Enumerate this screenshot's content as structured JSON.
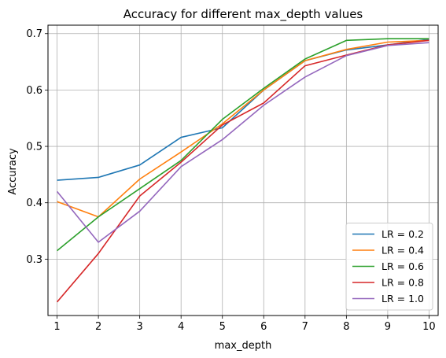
{
  "chart_data": {
    "type": "line",
    "title": "Accuracy for different max_depth values",
    "xlabel": "max_depth",
    "ylabel": "Accuracy",
    "x": [
      1,
      2,
      3,
      4,
      5,
      6,
      7,
      8,
      9,
      10
    ],
    "xlim": [
      0.78,
      10.22
    ],
    "ylim": [
      0.2,
      0.715
    ],
    "yticks": [
      0.3,
      0.4,
      0.5,
      0.6,
      0.7
    ],
    "ytick_labels": [
      "0.3",
      "0.4",
      "0.5",
      "0.6",
      "0.7"
    ],
    "xtick_labels": [
      "1",
      "2",
      "3",
      "4",
      "5",
      "6",
      "7",
      "8",
      "9",
      "10"
    ],
    "grid": true,
    "legend_position": "lower-right",
    "series": [
      {
        "name": "LR = 0.2",
        "color": "#1f77b4",
        "values": [
          0.44,
          0.445,
          0.467,
          0.516,
          0.533,
          0.6,
          0.652,
          0.671,
          0.68,
          0.69
        ]
      },
      {
        "name": "LR = 0.4",
        "color": "#ff7f0e",
        "values": [
          0.402,
          0.375,
          0.442,
          0.49,
          0.54,
          0.6,
          0.652,
          0.672,
          0.685,
          0.688
        ]
      },
      {
        "name": "LR = 0.6",
        "color": "#2ca02c",
        "values": [
          0.315,
          0.375,
          0.425,
          0.475,
          0.548,
          0.603,
          0.655,
          0.688,
          0.691,
          0.691
        ]
      },
      {
        "name": "LR = 0.8",
        "color": "#d62728",
        "values": [
          0.224,
          0.31,
          0.412,
          0.472,
          0.538,
          0.577,
          0.643,
          0.662,
          0.68,
          0.688
        ]
      },
      {
        "name": "LR = 1.0",
        "color": "#9467bd",
        "values": [
          0.42,
          0.33,
          0.385,
          0.464,
          0.512,
          0.573,
          0.623,
          0.661,
          0.679,
          0.684
        ]
      }
    ]
  }
}
